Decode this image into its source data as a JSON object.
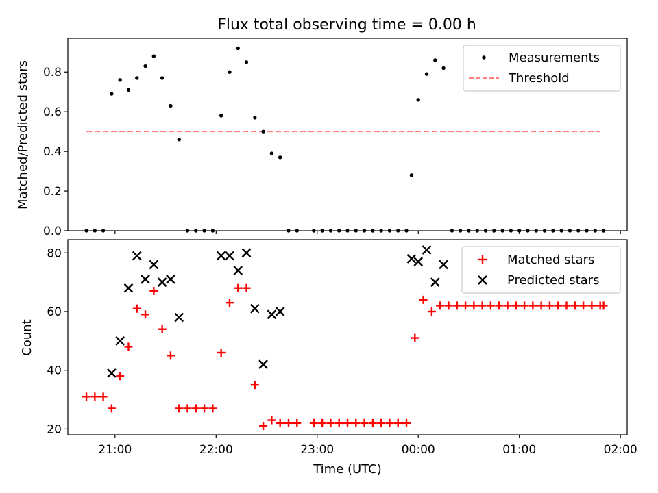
{
  "figure_title": "Flux total observing time = 0.00 h",
  "colors": {
    "measurement": "#000000",
    "threshold": "#ff8080",
    "matched": "#ff0000",
    "predicted": "#000000"
  },
  "x_ticks": [
    "21:00",
    "22:00",
    "23:00",
    "00:00",
    "01:00",
    "02:00"
  ],
  "xlabel": "Time (UTC)",
  "chart_data": [
    {
      "type": "scatter",
      "title": "Flux total observing time = 0.00 h",
      "ylabel": "Matched/Predicted stars",
      "xlabel": "",
      "xlim": [
        "20:32",
        "02:04"
      ],
      "ylim": [
        0,
        0.97
      ],
      "y_ticks": [
        "0.0",
        "0.2",
        "0.4",
        "0.6",
        "0.8"
      ],
      "grid": false,
      "legend": "top-right",
      "legend_labels": [
        "Measurements",
        "Threshold"
      ],
      "threshold": {
        "name": "Threshold",
        "value": 0.5,
        "x_range": [
          "20:43",
          "01:48"
        ],
        "style": "dashed"
      },
      "series": [
        {
          "name": "Measurements",
          "points": [
            [
              "20:43",
              0.0
            ],
            [
              "20:48",
              0.0
            ],
            [
              "20:53",
              0.0
            ],
            [
              "20:58",
              0.69
            ],
            [
              "21:03",
              0.76
            ],
            [
              "21:08",
              0.71
            ],
            [
              "21:13",
              0.77
            ],
            [
              "21:18",
              0.83
            ],
            [
              "21:23",
              0.88
            ],
            [
              "21:28",
              0.77
            ],
            [
              "21:33",
              0.63
            ],
            [
              "21:38",
              0.46
            ],
            [
              "21:43",
              0.0
            ],
            [
              "21:48",
              0.0
            ],
            [
              "21:53",
              0.0
            ],
            [
              "21:58",
              0.0
            ],
            [
              "22:03",
              0.58
            ],
            [
              "22:08",
              0.8
            ],
            [
              "22:13",
              0.92
            ],
            [
              "22:18",
              0.85
            ],
            [
              "22:23",
              0.57
            ],
            [
              "22:28",
              0.5
            ],
            [
              "22:33",
              0.39
            ],
            [
              "22:38",
              0.37
            ],
            [
              "22:43",
              0.0
            ],
            [
              "22:48",
              0.0
            ],
            [
              "22:58",
              0.0
            ],
            [
              "23:03",
              0.0
            ],
            [
              "23:08",
              0.0
            ],
            [
              "23:13",
              0.0
            ],
            [
              "23:18",
              0.0
            ],
            [
              "23:23",
              0.0
            ],
            [
              "23:28",
              0.0
            ],
            [
              "23:33",
              0.0
            ],
            [
              "23:38",
              0.0
            ],
            [
              "23:43",
              0.0
            ],
            [
              "23:48",
              0.0
            ],
            [
              "23:53",
              0.0
            ],
            [
              "23:56",
              0.28
            ],
            [
              "00:00",
              0.66
            ],
            [
              "00:05",
              0.79
            ],
            [
              "00:10",
              0.86
            ],
            [
              "00:15",
              0.82
            ],
            [
              "00:20",
              0.0
            ],
            [
              "00:25",
              0.0
            ],
            [
              "00:30",
              0.0
            ],
            [
              "00:35",
              0.0
            ],
            [
              "00:40",
              0.0
            ],
            [
              "00:45",
              0.0
            ],
            [
              "00:50",
              0.0
            ],
            [
              "00:55",
              0.0
            ],
            [
              "01:00",
              0.0
            ],
            [
              "01:05",
              0.0
            ],
            [
              "01:10",
              0.0
            ],
            [
              "01:15",
              0.0
            ],
            [
              "01:20",
              0.0
            ],
            [
              "01:25",
              0.0
            ],
            [
              "01:30",
              0.0
            ],
            [
              "01:35",
              0.0
            ],
            [
              "01:40",
              0.0
            ],
            [
              "01:45",
              0.0
            ],
            [
              "01:50",
              0.0
            ]
          ]
        }
      ]
    },
    {
      "type": "scatter",
      "title": "",
      "ylabel": "Count",
      "xlabel": "Time (UTC)",
      "xlim": [
        "20:32",
        "02:04"
      ],
      "ylim": [
        18,
        84.5
      ],
      "y_ticks": [
        "20",
        "40",
        "60",
        "80"
      ],
      "grid": false,
      "legend": "top-right",
      "legend_labels": [
        "Matched stars",
        "Predicted stars"
      ],
      "series": [
        {
          "name": "Matched stars",
          "marker": "plus",
          "points": [
            [
              "20:43",
              31
            ],
            [
              "20:48",
              31
            ],
            [
              "20:53",
              31
            ],
            [
              "20:58",
              27
            ],
            [
              "21:03",
              38
            ],
            [
              "21:08",
              48
            ],
            [
              "21:13",
              61
            ],
            [
              "21:18",
              59
            ],
            [
              "21:23",
              67
            ],
            [
              "21:28",
              54
            ],
            [
              "21:33",
              45
            ],
            [
              "21:38",
              27
            ],
            [
              "21:43",
              27
            ],
            [
              "21:48",
              27
            ],
            [
              "21:53",
              27
            ],
            [
              "21:58",
              27
            ],
            [
              "22:03",
              46
            ],
            [
              "22:08",
              63
            ],
            [
              "22:13",
              68
            ],
            [
              "22:18",
              68
            ],
            [
              "22:23",
              35
            ],
            [
              "22:28",
              21
            ],
            [
              "22:33",
              23
            ],
            [
              "22:38",
              22
            ],
            [
              "22:43",
              22
            ],
            [
              "22:48",
              22
            ],
            [
              "22:58",
              22
            ],
            [
              "23:03",
              22
            ],
            [
              "23:08",
              22
            ],
            [
              "23:13",
              22
            ],
            [
              "23:18",
              22
            ],
            [
              "23:23",
              22
            ],
            [
              "23:28",
              22
            ],
            [
              "23:33",
              22
            ],
            [
              "23:38",
              22
            ],
            [
              "23:43",
              22
            ],
            [
              "23:48",
              22
            ],
            [
              "23:53",
              22
            ],
            [
              "23:58",
              51
            ],
            [
              "00:03",
              64
            ],
            [
              "00:08",
              60
            ],
            [
              "00:13",
              62
            ],
            [
              "00:18",
              62
            ],
            [
              "00:23",
              62
            ],
            [
              "00:28",
              62
            ],
            [
              "00:33",
              62
            ],
            [
              "00:38",
              62
            ],
            [
              "00:43",
              62
            ],
            [
              "00:48",
              62
            ],
            [
              "00:53",
              62
            ],
            [
              "00:58",
              62
            ],
            [
              "01:03",
              62
            ],
            [
              "01:08",
              62
            ],
            [
              "01:13",
              62
            ],
            [
              "01:18",
              62
            ],
            [
              "01:23",
              62
            ],
            [
              "01:28",
              62
            ],
            [
              "01:33",
              62
            ],
            [
              "01:38",
              62
            ],
            [
              "01:43",
              62
            ],
            [
              "01:48",
              62
            ],
            [
              "01:50",
              62
            ]
          ]
        },
        {
          "name": "Predicted stars",
          "marker": "x",
          "points": [
            [
              "20:58",
              39
            ],
            [
              "21:03",
              50
            ],
            [
              "21:08",
              68
            ],
            [
              "21:13",
              79
            ],
            [
              "21:18",
              71
            ],
            [
              "21:23",
              76
            ],
            [
              "21:28",
              70
            ],
            [
              "21:33",
              71
            ],
            [
              "21:38",
              58
            ],
            [
              "22:03",
              79
            ],
            [
              "22:08",
              79
            ],
            [
              "22:13",
              74
            ],
            [
              "22:18",
              80
            ],
            [
              "22:23",
              61
            ],
            [
              "22:28",
              42
            ],
            [
              "22:33",
              59
            ],
            [
              "22:38",
              60
            ],
            [
              "23:56",
              78
            ],
            [
              "00:00",
              77
            ],
            [
              "00:05",
              81
            ],
            [
              "00:10",
              70
            ],
            [
              "00:15",
              76
            ]
          ]
        }
      ]
    }
  ]
}
